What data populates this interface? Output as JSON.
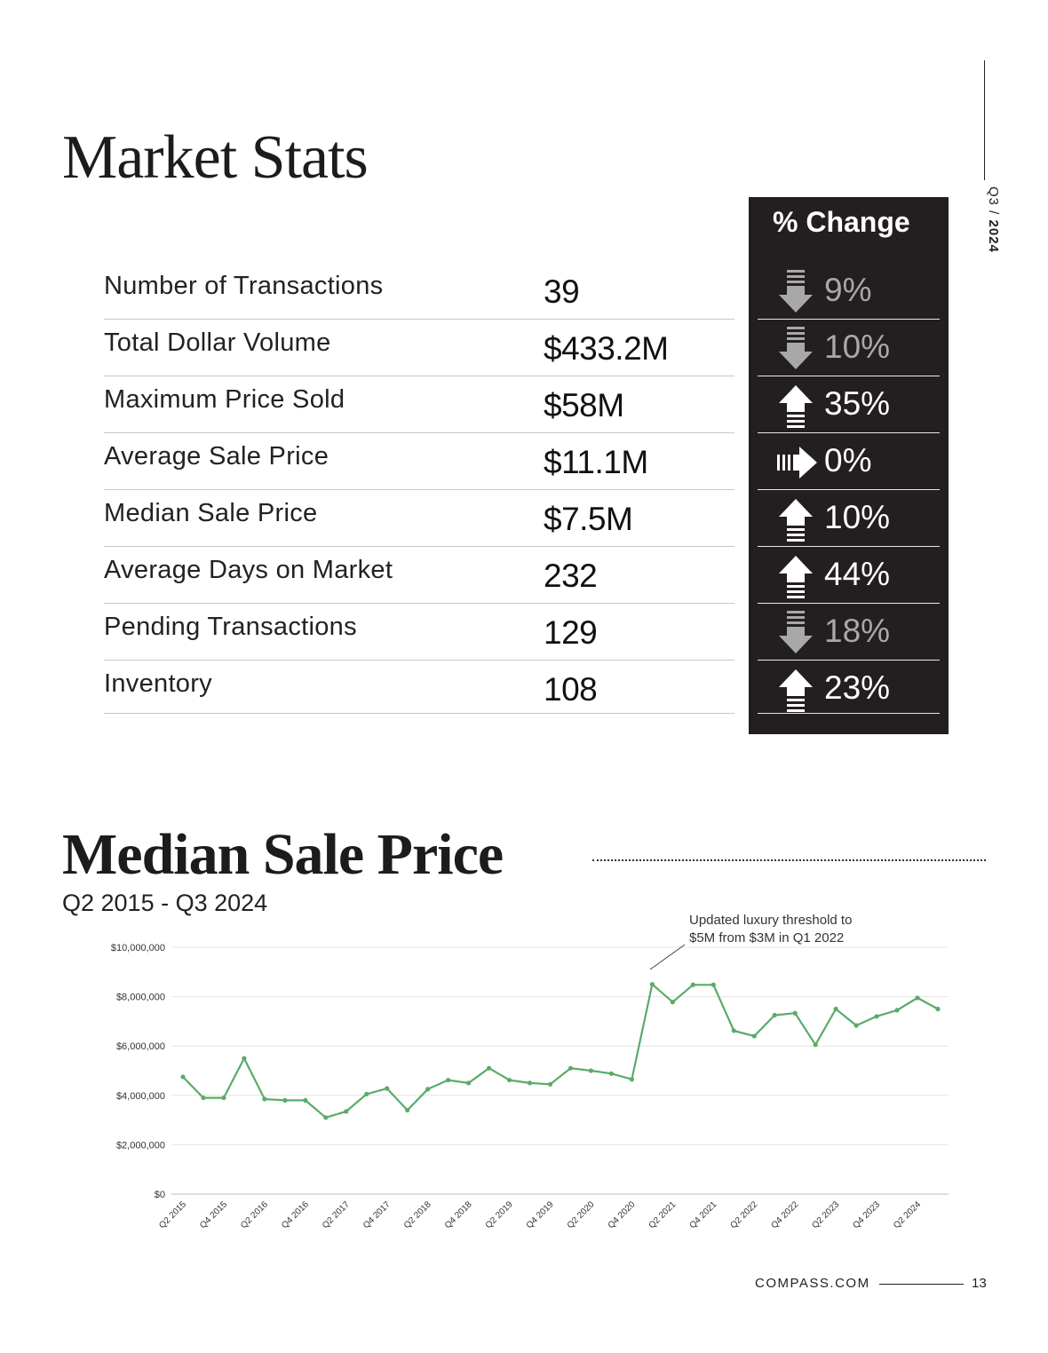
{
  "side": {
    "quarter": "Q3",
    "sep": " / ",
    "year": "2024"
  },
  "market_stats": {
    "title": "Market Stats",
    "change_header": "% Change",
    "rows": [
      {
        "label": "Number of Transactions",
        "value": "39",
        "change": "9%",
        "direction": "down"
      },
      {
        "label": "Total Dollar Volume",
        "value": "$433.2M",
        "change": "10%",
        "direction": "down"
      },
      {
        "label": "Maximum Price Sold",
        "value": "$58M",
        "change": "35%",
        "direction": "up"
      },
      {
        "label": "Average Sale Price",
        "value": "$11.1M",
        "change": "0%",
        "direction": "flat"
      },
      {
        "label": "Median Sale Price",
        "value": "$7.5M",
        "change": "10%",
        "direction": "up"
      },
      {
        "label": "Average Days on Market",
        "value": "232",
        "change": "44%",
        "direction": "up"
      },
      {
        "label": "Pending Transactions",
        "value": "129",
        "change": "18%",
        "direction": "down"
      },
      {
        "label": "Inventory",
        "value": "108",
        "change": "23%",
        "direction": "up"
      }
    ]
  },
  "median_section": {
    "title": "Median Sale Price",
    "subtitle": "Q2 2015 - Q3 2024",
    "annotation_line1": "Updated luxury threshold to",
    "annotation_line2": "$5M from $3M in Q1 2022"
  },
  "chart_data": {
    "type": "line",
    "color": "#5aab6a",
    "x": [
      "Q2 2015",
      "Q3 2015",
      "Q4 2015",
      "Q1 2016",
      "Q2 2016",
      "Q3 2016",
      "Q4 2016",
      "Q1 2017",
      "Q2 2017",
      "Q3 2017",
      "Q4 2017",
      "Q1 2018",
      "Q2 2018",
      "Q3 2018",
      "Q4 2018",
      "Q1 2019",
      "Q2 2019",
      "Q3 2019",
      "Q4 2019",
      "Q1 2020",
      "Q2 2020",
      "Q3 2020",
      "Q4 2020",
      "Q1 2021",
      "Q2 2021",
      "Q3 2021",
      "Q4 2021",
      "Q1 2022",
      "Q2 2022",
      "Q3 2022",
      "Q4 2022",
      "Q1 2023",
      "Q2 2023",
      "Q3 2023",
      "Q4 2023",
      "Q1 2024",
      "Q2 2024",
      "Q3 2024"
    ],
    "values": [
      4750000,
      3900000,
      3900000,
      5500000,
      3850000,
      3800000,
      3800000,
      3100000,
      3350000,
      4050000,
      4280000,
      3400000,
      4250000,
      4620000,
      4500000,
      5100000,
      4620000,
      4500000,
      4450000,
      5100000,
      5000000,
      4880000,
      4650000,
      8500000,
      7780000,
      8480000,
      8480000,
      6620000,
      6400000,
      7250000,
      7330000,
      6050000,
      7500000,
      6830000,
      7200000,
      7450000,
      7950000,
      7500000
    ],
    "x_tick_labels": [
      "Q2 2015",
      "Q4 2015",
      "Q2 2016",
      "Q4 2016",
      "Q2 2017",
      "Q4 2017",
      "Q2 2018",
      "Q4 2018",
      "Q2 2019",
      "Q4 2019",
      "Q2 2020",
      "Q4 2020",
      "Q2 2021",
      "Q4 2021",
      "Q2 2022",
      "Q4 2022",
      "Q2 2023",
      "Q4 2023",
      "Q2 2024"
    ],
    "y_ticks": [
      0,
      2000000,
      4000000,
      6000000,
      8000000,
      10000000
    ],
    "y_tick_labels": [
      "$0",
      "$2,000,000",
      "$4,000,000",
      "$6,000,000",
      "$8,000,000",
      "$10,000,000"
    ],
    "ylim": [
      0,
      10000000
    ],
    "grid": true
  },
  "footer": {
    "site": "COMPASS.COM",
    "page": "13"
  }
}
